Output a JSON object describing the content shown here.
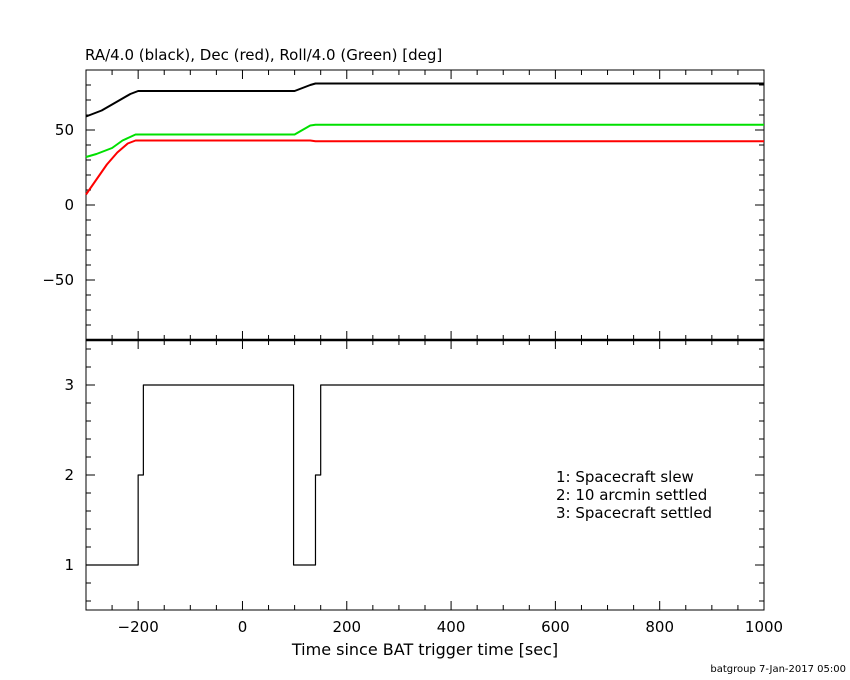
{
  "chart_data": [
    {
      "type": "line",
      "title": "RA/4.0 (black), Dec (red), Roll/4.0 (Green) [deg]",
      "xlim": [
        -300,
        1000
      ],
      "ylim": [
        -90,
        90
      ],
      "x_ticks": [
        -200,
        0,
        200,
        400,
        600,
        800,
        1000
      ],
      "y_ticks": [
        50,
        0,
        -50
      ],
      "grid": false,
      "series": [
        {
          "color": "#000000",
          "points": [
            [
              -300,
              59
            ],
            [
              -270,
              63
            ],
            [
              -240,
              69
            ],
            [
              -215,
              74
            ],
            [
              -200,
              76
            ],
            [
              100,
              76
            ],
            [
              115,
              78
            ],
            [
              130,
              80
            ],
            [
              140,
              81
            ],
            [
              1000,
              81
            ]
          ]
        },
        {
          "color": "#ff0000",
          "points": [
            [
              -300,
              7
            ],
            [
              -280,
              17
            ],
            [
              -260,
              27
            ],
            [
              -240,
              35
            ],
            [
              -220,
              41
            ],
            [
              -205,
              43
            ],
            [
              130,
              43
            ],
            [
              140,
              42.5
            ],
            [
              1000,
              42.5
            ]
          ]
        },
        {
          "color": "#00e000",
          "points": [
            [
              -300,
              32
            ],
            [
              -280,
              34
            ],
            [
              -250,
              38
            ],
            [
              -230,
              43
            ],
            [
              -205,
              47
            ],
            [
              100,
              47
            ],
            [
              115,
              50
            ],
            [
              130,
              53
            ],
            [
              140,
              53.5
            ],
            [
              1000,
              53.5
            ]
          ]
        }
      ]
    },
    {
      "type": "line",
      "xlabel": "Time since BAT trigger time [sec]",
      "xlim": [
        -300,
        1000
      ],
      "ylim": [
        0.5,
        3.5
      ],
      "x_ticks": [
        -200,
        0,
        200,
        400,
        600,
        800,
        1000
      ],
      "y_ticks": [
        3,
        2,
        1
      ],
      "step": true,
      "legend_lines": [
        "1: Spacecraft slew",
        "2: 10 arcmin settled",
        "3: Spacecraft settled"
      ],
      "legend_position": "center-right",
      "series": [
        {
          "color": "#000000",
          "points": [
            [
              -300,
              1
            ],
            [
              -200,
              1
            ],
            [
              -200,
              2
            ],
            [
              -190,
              2
            ],
            [
              -190,
              3
            ],
            [
              98,
              3
            ],
            [
              98,
              1
            ],
            [
              140,
              1
            ],
            [
              140,
              2
            ],
            [
              150,
              2
            ],
            [
              150,
              3
            ],
            [
              1000,
              3
            ]
          ]
        }
      ]
    }
  ],
  "footer": "batgroup  7-Jan-2017 05:00"
}
